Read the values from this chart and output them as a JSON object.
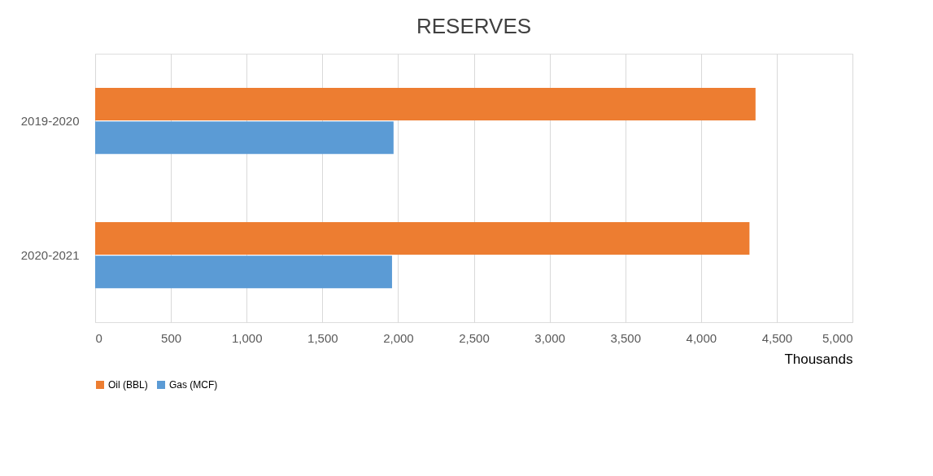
{
  "chart_data": {
    "type": "bar",
    "orientation": "horizontal",
    "title": "RESERVES",
    "xlabel": "Thousands",
    "categories": [
      "2019-2020",
      "2020-2021"
    ],
    "series": [
      {
        "name": "Oil (BBL)",
        "color": "#ed7d31",
        "values": [
          4360,
          4320
        ]
      },
      {
        "name": "Gas (MCF)",
        "color": "#5b9bd5",
        "values": [
          1970,
          1960
        ]
      }
    ],
    "xlim": [
      0,
      5000
    ],
    "xticks": [
      {
        "value": 0,
        "label": "0"
      },
      {
        "value": 500,
        "label": "500"
      },
      {
        "value": 1000,
        "label": "1,000"
      },
      {
        "value": 1500,
        "label": "1,500"
      },
      {
        "value": 2000,
        "label": "2,000"
      },
      {
        "value": 2500,
        "label": "2,500"
      },
      {
        "value": 3000,
        "label": "3,000"
      },
      {
        "value": 3500,
        "label": "3,500"
      },
      {
        "value": 4000,
        "label": "4,000"
      },
      {
        "value": 4500,
        "label": "4,500"
      },
      {
        "value": 5000,
        "label": "5,000"
      }
    ],
    "grid": "x",
    "legend": "bottom"
  }
}
